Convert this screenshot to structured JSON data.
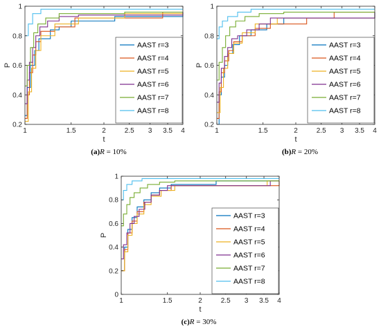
{
  "chart_data": [
    {
      "type": "line",
      "caption": {
        "tag": "(a)",
        "var": "R",
        "text": " = 10%"
      },
      "xlabel": "t",
      "ylabel": "P",
      "xscale": "log",
      "xlim": [
        1,
        4
      ],
      "ylim": [
        0.2,
        1
      ],
      "xticks": [
        1,
        1.5,
        2,
        2.5,
        3,
        3.5,
        4
      ],
      "yticks": [
        0.2,
        0.4,
        0.6,
        0.8,
        1
      ],
      "legend_position": "center-right",
      "series": [
        {
          "name": "AAST r=3",
          "color": "#0072BD",
          "x": [
            1,
            1.02,
            1.05,
            1.09,
            1.13,
            1.25,
            1.35,
            1.5,
            2.2,
            4
          ],
          "y": [
            0.26,
            0.45,
            0.6,
            0.7,
            0.78,
            0.84,
            0.86,
            0.9,
            0.93,
            0.96
          ]
        },
        {
          "name": "AAST r=4",
          "color": "#D95319",
          "x": [
            1,
            1.02,
            1.04,
            1.07,
            1.1,
            1.15,
            1.3,
            1.55,
            3.35,
            4
          ],
          "y": [
            0.24,
            0.4,
            0.55,
            0.67,
            0.76,
            0.83,
            0.86,
            0.92,
            0.96,
            0.96
          ]
        },
        {
          "name": "AAST r=5",
          "color": "#EDB120",
          "x": [
            1,
            1.03,
            1.06,
            1.1,
            1.15,
            1.3,
            1.6,
            2.4,
            4
          ],
          "y": [
            0.22,
            0.42,
            0.58,
            0.7,
            0.8,
            0.88,
            0.92,
            0.95,
            0.96
          ]
        },
        {
          "name": "AAST r=6",
          "color": "#7E2F8E",
          "x": [
            1,
            1.02,
            1.04,
            1.07,
            1.1,
            1.14,
            1.22,
            1.35,
            1.6,
            4
          ],
          "y": [
            0.34,
            0.5,
            0.62,
            0.72,
            0.8,
            0.86,
            0.9,
            0.93,
            0.94,
            0.96
          ]
        },
        {
          "name": "AAST r=7",
          "color": "#77AC30",
          "x": [
            1,
            1.02,
            1.05,
            1.08,
            1.12,
            1.2,
            1.35,
            2.4,
            4
          ],
          "y": [
            0.46,
            0.6,
            0.72,
            0.82,
            0.88,
            0.92,
            0.95,
            0.96,
            0.96
          ]
        },
        {
          "name": "AAST r=8",
          "color": "#4DBEEE",
          "x": [
            1,
            1.03,
            1.07,
            1.15,
            4
          ],
          "y": [
            0.8,
            0.88,
            0.95,
            0.98,
            0.98
          ]
        }
      ]
    },
    {
      "type": "line",
      "caption": {
        "tag": "(b)",
        "var": "R",
        "text": " = 20%"
      },
      "xlabel": "t",
      "ylabel": "P",
      "xscale": "log",
      "xlim": [
        1,
        4
      ],
      "ylim": [
        0.2,
        1
      ],
      "xticks": [
        1,
        1.5,
        2,
        2.5,
        3,
        3.5,
        4
      ],
      "yticks": [
        0.2,
        0.4,
        0.6,
        0.8,
        1
      ],
      "legend_position": "center-right",
      "series": [
        {
          "name": "AAST r=3",
          "color": "#0072BD",
          "x": [
            1,
            1.02,
            1.04,
            1.07,
            1.1,
            1.15,
            1.22,
            1.35,
            1.55,
            1.8,
            4
          ],
          "y": [
            0.2,
            0.4,
            0.52,
            0.6,
            0.68,
            0.74,
            0.8,
            0.84,
            0.88,
            0.92,
            0.96
          ]
        },
        {
          "name": "AAST r=4",
          "color": "#D95319",
          "x": [
            1,
            1.02,
            1.04,
            1.07,
            1.11,
            1.16,
            1.25,
            1.4,
            1.6,
            2.2,
            2.8,
            4
          ],
          "y": [
            0.24,
            0.42,
            0.55,
            0.63,
            0.7,
            0.76,
            0.8,
            0.85,
            0.88,
            0.92,
            0.96,
            0.96
          ]
        },
        {
          "name": "AAST r=5",
          "color": "#EDB120",
          "x": [
            1,
            1.03,
            1.06,
            1.1,
            1.16,
            1.25,
            1.4,
            1.7,
            4
          ],
          "y": [
            0.28,
            0.45,
            0.58,
            0.68,
            0.75,
            0.82,
            0.88,
            0.92,
            0.96
          ]
        },
        {
          "name": "AAST r=6",
          "color": "#7E2F8E",
          "x": [
            1,
            1.02,
            1.04,
            1.07,
            1.1,
            1.14,
            1.2,
            1.3,
            1.45,
            1.6,
            4
          ],
          "y": [
            0.35,
            0.48,
            0.58,
            0.66,
            0.72,
            0.78,
            0.8,
            0.84,
            0.88,
            0.92,
            0.96
          ]
        },
        {
          "name": "AAST r=7",
          "color": "#77AC30",
          "x": [
            1,
            1.02,
            1.05,
            1.08,
            1.12,
            1.18,
            1.28,
            1.45,
            1.8,
            4
          ],
          "y": [
            0.5,
            0.62,
            0.72,
            0.8,
            0.86,
            0.9,
            0.93,
            0.95,
            0.96,
            0.96
          ]
        },
        {
          "name": "AAST r=8",
          "color": "#4DBEEE",
          "x": [
            1,
            1.02,
            1.05,
            1.1,
            1.2,
            1.35,
            4
          ],
          "y": [
            0.78,
            0.86,
            0.9,
            0.93,
            0.96,
            0.98,
            0.98
          ]
        }
      ]
    },
    {
      "type": "line",
      "caption": {
        "tag": "(c)",
        "var": "R",
        "text": " = 30%"
      },
      "xlabel": "t",
      "ylabel": "P",
      "xscale": "log",
      "xlim": [
        1,
        4
      ],
      "ylim": [
        0,
        1
      ],
      "xticks": [
        1,
        1.5,
        2,
        2.5,
        3,
        3.5,
        4
      ],
      "yticks": [
        0,
        0.2,
        0.4,
        0.6,
        0.8,
        1
      ],
      "legend_position": "center-right",
      "series": [
        {
          "name": "AAST r=3",
          "color": "#0072BD",
          "x": [
            1,
            1.03,
            1.06,
            1.1,
            1.15,
            1.22,
            1.3,
            1.4,
            1.55,
            2.3,
            4
          ],
          "y": [
            0.2,
            0.4,
            0.55,
            0.65,
            0.74,
            0.8,
            0.86,
            0.9,
            0.93,
            0.96,
            0.96
          ]
        },
        {
          "name": "AAST r=4",
          "color": "#D95319",
          "x": [
            1,
            1.03,
            1.06,
            1.1,
            1.15,
            1.22,
            1.3,
            1.4,
            1.55,
            4
          ],
          "y": [
            0.2,
            0.38,
            0.52,
            0.62,
            0.7,
            0.78,
            0.84,
            0.88,
            0.92,
            0.96
          ]
        },
        {
          "name": "AAST r=5",
          "color": "#EDB120",
          "x": [
            1,
            1.03,
            1.06,
            1.1,
            1.15,
            1.22,
            1.3,
            1.42,
            1.6,
            3.6,
            4
          ],
          "y": [
            0.2,
            0.36,
            0.5,
            0.6,
            0.68,
            0.76,
            0.83,
            0.88,
            0.92,
            0.96,
            0.96
          ]
        },
        {
          "name": "AAST r=6",
          "color": "#7E2F8E",
          "x": [
            1,
            1.02,
            1.05,
            1.08,
            1.12,
            1.17,
            1.23,
            1.3,
            1.4,
            1.5,
            3.7,
            4
          ],
          "y": [
            0.3,
            0.42,
            0.52,
            0.6,
            0.66,
            0.72,
            0.78,
            0.84,
            0.88,
            0.92,
            0.96,
            0.96
          ]
        },
        {
          "name": "AAST r=7",
          "color": "#77AC30",
          "x": [
            1,
            1.02,
            1.05,
            1.08,
            1.12,
            1.18,
            1.26,
            1.4,
            1.6,
            4
          ],
          "y": [
            0.58,
            0.68,
            0.76,
            0.82,
            0.86,
            0.9,
            0.93,
            0.95,
            0.96,
            0.96
          ]
        },
        {
          "name": "AAST r=8",
          "color": "#4DBEEE",
          "x": [
            1,
            1.02,
            1.05,
            1.1,
            1.2,
            4
          ],
          "y": [
            0.8,
            0.88,
            0.93,
            0.96,
            0.98,
            0.98
          ]
        }
      ]
    }
  ]
}
